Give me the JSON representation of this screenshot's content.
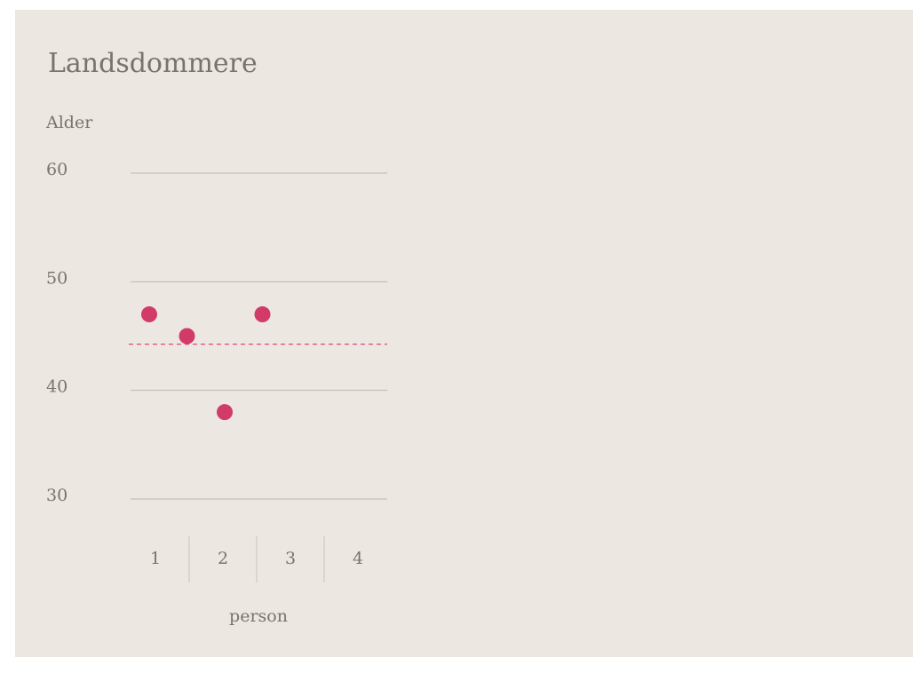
{
  "chart_data": {
    "type": "scatter",
    "title": "Landsdommere",
    "y_label": "Alder",
    "x_label": "person",
    "categories": [
      "1",
      "2",
      "3",
      "4"
    ],
    "values": [
      47,
      45,
      38,
      47
    ],
    "color": "#d23a68",
    "reference_line": 44.25,
    "ylim": [
      30,
      60
    ],
    "yticks": [
      30,
      40,
      50,
      60
    ],
    "grid": true
  }
}
